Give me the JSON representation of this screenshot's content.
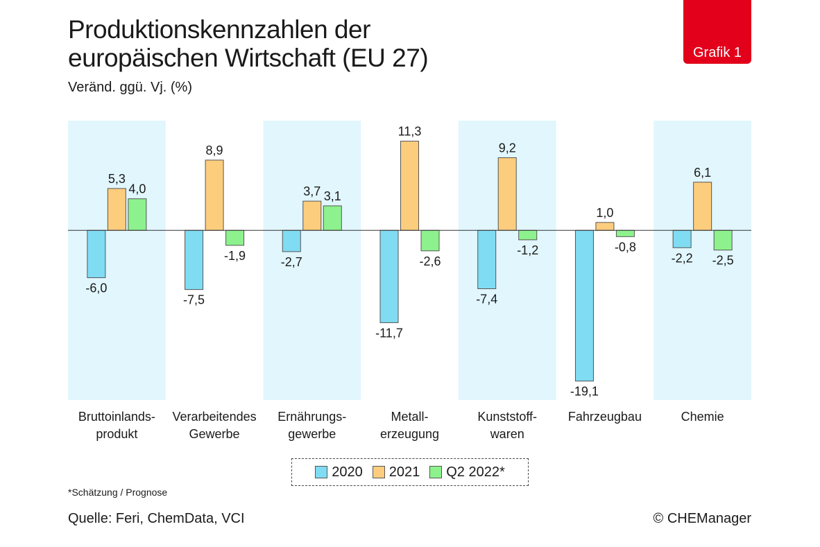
{
  "header": {
    "title_line1": "Produktionskennzahlen der",
    "title_line2": "europäischen Wirtschaft (EU 27)",
    "subtitle": "Veränd. ggü. Vj. (%)",
    "badge": "Grafik 1"
  },
  "colors": {
    "badge": "#e2001a",
    "band": "#e1f6fd",
    "s2020": "#7fdcf3",
    "s2021": "#fdcd7e",
    "s2022": "#8df28d",
    "bar_outline": "#555555",
    "axis": "#333333"
  },
  "chart_data": {
    "type": "bar",
    "title": "Produktionskennzahlen der europäischen Wirtschaft (EU 27)",
    "ylabel": "Veränd. ggü. Vj. (%)",
    "categories": [
      "Bruttoinlands-\nprodukt",
      "Verarbeitendes\nGewerbe",
      "Ernährungs-\ngewerbe",
      "Metall-\nerzeugung",
      "Kunststoff-\nwaren",
      "Fahrzeugbau",
      "Chemie"
    ],
    "series": [
      {
        "name": "2020",
        "values": [
          -6.0,
          -7.5,
          -2.7,
          -11.7,
          -7.4,
          -19.1,
          -2.2
        ],
        "labels": [
          "-6,0",
          "-7,5",
          "-2,7",
          "-11,7",
          "-7,4",
          "-19,1",
          "-2,2"
        ]
      },
      {
        "name": "2021",
        "values": [
          5.3,
          8.9,
          3.7,
          11.3,
          9.2,
          1.0,
          6.1
        ],
        "labels": [
          "5,3",
          "8,9",
          "3,7",
          "11,3",
          "9,2",
          "1,0",
          "6,1"
        ]
      },
      {
        "name": "Q2 2022*",
        "values": [
          4.0,
          -1.9,
          3.1,
          -2.6,
          -1.2,
          -0.8,
          -2.5
        ],
        "labels": [
          "4,0",
          "-1,9",
          "3,1",
          "-2,6",
          "-1,2",
          "-0,8",
          "-2,5"
        ]
      }
    ],
    "ylim": [
      -21.5,
      13.9
    ],
    "grid": false,
    "legend": "bottom-center"
  },
  "footer": {
    "footnote": "*Schätzung / Prognose",
    "source": "Quelle: Feri, ChemData, VCI",
    "copyright": "© CHEManager"
  }
}
